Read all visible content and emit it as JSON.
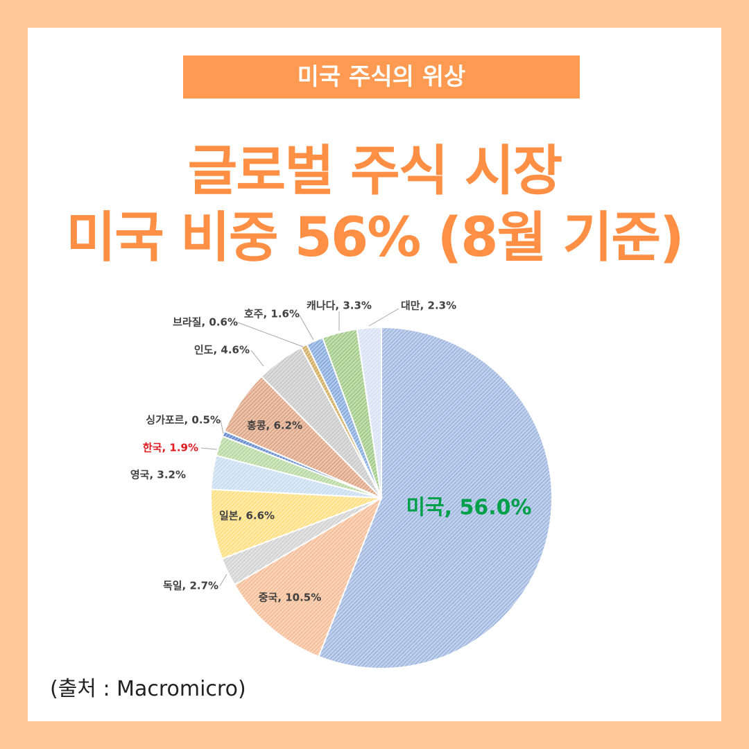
{
  "banner": "미국 주식의 위상",
  "headline": {
    "line1": "글로벌 주식 시장",
    "line2": "미국 비중 56% (8월 기준)"
  },
  "source": "(출처 : Macromicro)",
  "colors": {
    "background": "#ffc897",
    "accent": "#ff8f45",
    "us_label": "#00a04a",
    "korea_label": "#e0191f"
  },
  "chart_data": {
    "type": "pie",
    "title": "",
    "start": "12 o'clock, clockwise",
    "slices": [
      {
        "label": "미국, 56.0%",
        "value": 56.0,
        "color": "#8eaadb"
      },
      {
        "label": "중국, 10.5%",
        "value": 10.5,
        "color": "#f4b183"
      },
      {
        "label": "독일, 2.7%",
        "value": 2.7,
        "color": "#c9c9c9"
      },
      {
        "label": "일본, 6.6%",
        "value": 6.6,
        "color": "#ffd966"
      },
      {
        "label": "영국, 3.2%",
        "value": 3.2,
        "color": "#bdd7ee"
      },
      {
        "label": "한국, 1.9%",
        "value": 1.9,
        "color": "#a9d18e"
      },
      {
        "label": "싱가포르, 0.5%",
        "value": 0.5,
        "color": "#4472c4"
      },
      {
        "label": "홍콩, 6.2%",
        "value": 6.2,
        "color": "#d9946c"
      },
      {
        "label": "인도, 4.6%",
        "value": 4.6,
        "color": "#bfbfbf"
      },
      {
        "label": "브라질, 0.6%",
        "value": 0.6,
        "color": "#c89b3c"
      },
      {
        "label": "호주, 1.6%",
        "value": 1.6,
        "color": "#6f9bd6"
      },
      {
        "label": "캐나다, 3.3%",
        "value": 3.3,
        "color": "#8fc06f"
      },
      {
        "label": "대만, 2.3%",
        "value": 2.3,
        "color": "#cfdcf2"
      }
    ]
  }
}
